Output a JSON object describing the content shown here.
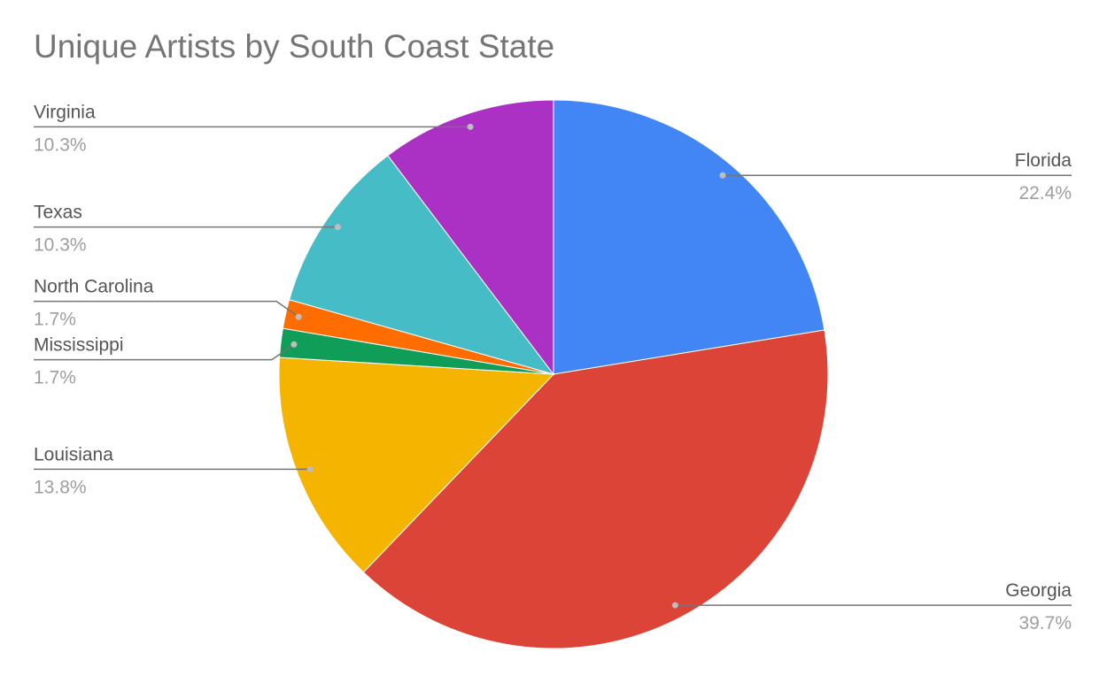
{
  "chart_data": {
    "type": "pie",
    "title": "Unique Artists by South Coast State",
    "categories": [
      "Florida",
      "Georgia",
      "Louisiana",
      "Mississippi",
      "North Carolina",
      "Texas",
      "Virginia"
    ],
    "values": [
      22.4,
      39.7,
      13.8,
      1.7,
      1.7,
      10.3,
      10.3
    ],
    "value_labels": [
      "22.4%",
      "39.7%",
      "13.8%",
      "1.7%",
      "1.7%",
      "10.3%",
      "10.3%"
    ],
    "colors": [
      "#4285f4",
      "#db4437",
      "#f4b400",
      "#0f9d58",
      "#ff6d01",
      "#46bdc6",
      "#ab30c4"
    ]
  }
}
